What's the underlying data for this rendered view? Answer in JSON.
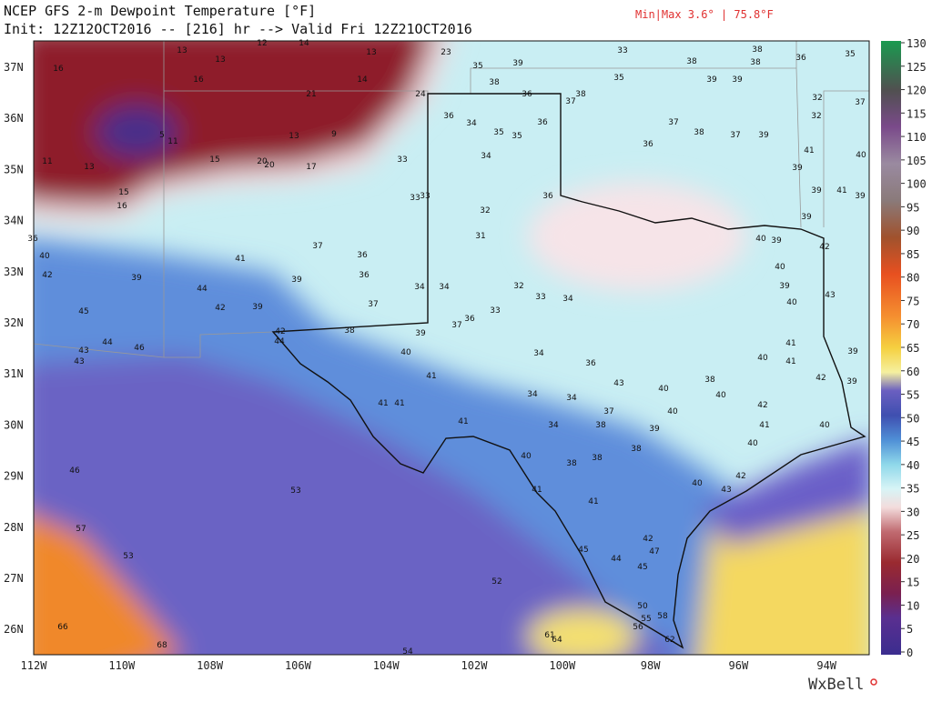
{
  "header": {
    "title": "NCEP GFS 2-m Dewpoint Temperature [°F]",
    "subtitle": "Init: 12Z12OCT2016 -- [216] hr --> Valid Fri 12Z21OCT2016",
    "minmax": "Min|Max 3.6° | 75.8°F",
    "logo": "WxBell"
  },
  "map": {
    "lat_labels": [
      "37N",
      "36N",
      "35N",
      "34N",
      "33N",
      "32N",
      "31N",
      "30N",
      "29N",
      "28N",
      "27N",
      "26N"
    ],
    "lon_labels": [
      "112W",
      "110W",
      "108W",
      "106W",
      "104W",
      "102W",
      "100W",
      "98W",
      "96W",
      "94W"
    ],
    "stations": [
      16,
      13,
      13,
      12,
      14,
      13,
      23,
      33,
      38,
      36,
      35,
      16,
      21,
      14,
      35,
      39,
      38,
      35,
      38,
      39,
      39,
      38,
      24,
      36,
      37,
      38,
      36,
      34,
      35,
      35,
      36,
      5,
      11,
      13,
      9,
      11,
      13,
      15,
      20,
      20,
      17,
      33,
      34,
      15,
      16,
      36,
      33,
      33,
      32,
      31,
      36,
      40,
      37,
      36,
      41,
      39,
      42,
      44,
      42,
      39,
      39,
      36,
      34,
      34,
      32,
      33,
      34,
      37,
      33,
      45,
      38,
      37,
      36,
      39,
      44,
      46,
      43,
      43,
      42,
      44,
      40,
      41,
      41,
      41,
      41,
      34,
      36,
      34,
      34,
      34,
      43,
      38,
      37,
      38,
      38,
      40,
      41,
      46,
      53,
      57,
      53,
      52,
      45,
      44,
      45,
      42,
      47,
      50,
      55,
      56,
      58,
      62,
      61,
      64,
      66,
      68,
      54,
      36,
      37,
      38,
      37,
      39,
      41,
      40,
      39,
      39,
      41,
      39,
      39,
      42,
      40,
      39,
      40,
      39,
      40,
      43,
      39,
      41,
      41,
      40,
      42,
      39,
      42,
      41,
      40,
      40,
      42,
      40,
      43,
      41,
      38,
      39,
      40,
      40,
      38,
      40,
      32,
      37,
      32
    ]
  },
  "colorbar": {
    "range": [
      0,
      130
    ],
    "ticks": [
      0,
      5,
      10,
      15,
      20,
      25,
      30,
      35,
      40,
      45,
      50,
      55,
      60,
      65,
      70,
      75,
      80,
      85,
      90,
      95,
      100,
      105,
      110,
      115,
      120,
      125,
      130
    ]
  }
}
